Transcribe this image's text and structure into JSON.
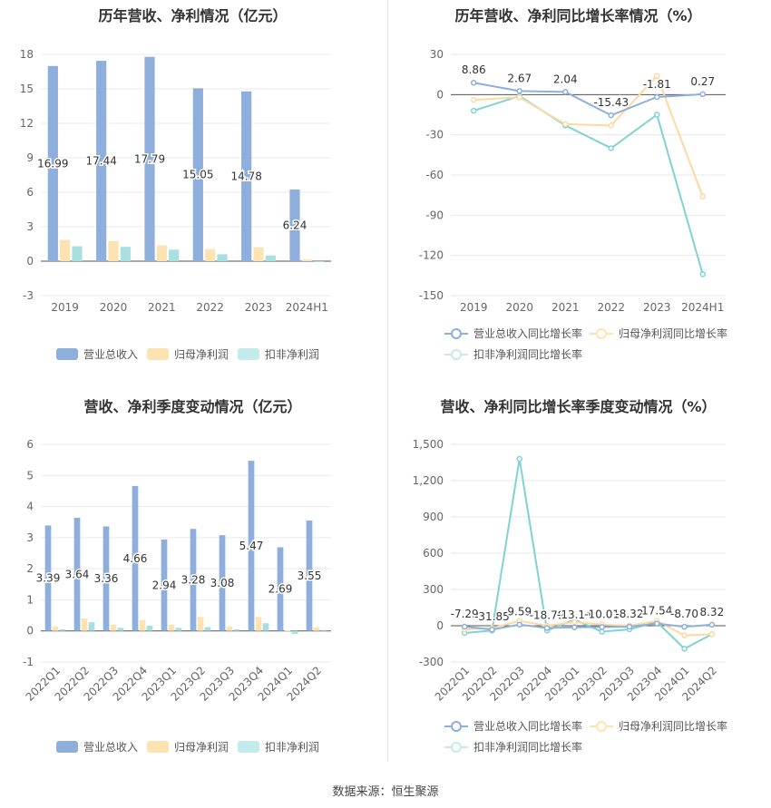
{
  "source": "数据来源：恒生聚源",
  "colors": {
    "revenue": "#8eaedb",
    "netprofit": "#fde3b2",
    "deducted": "#a8e0e0",
    "revenue_line": "#8eaedb",
    "netprofit_line": "#fdd9a0",
    "deducted_line": "#7fd3d3"
  },
  "legend_bar": [
    "营业总收入",
    "归母净利润",
    "扣非净利润"
  ],
  "legend_line": [
    "营业总收入同比增长率",
    "归母净利润同比增长率",
    "扣非净利润同比增长率"
  ],
  "chart_data": [
    {
      "type": "bar",
      "title": "历年营收、净利情况（亿元）",
      "categories": [
        "2019",
        "2020",
        "2021",
        "2022",
        "2023",
        "2024H1"
      ],
      "ylim": [
        -3,
        18
      ],
      "yticks": [
        -3,
        0,
        3,
        6,
        9,
        12,
        15,
        18
      ],
      "series": [
        {
          "name": "营业总收入",
          "values": [
            16.99,
            17.44,
            17.79,
            15.05,
            14.78,
            6.24
          ],
          "labels": [
            "16.99",
            "17.44",
            "17.79",
            "15.05",
            "14.78",
            "6.24"
          ]
        },
        {
          "name": "归母净利润",
          "values": [
            1.85,
            1.75,
            1.38,
            1.05,
            1.2,
            0.15
          ]
        },
        {
          "name": "扣非净利润",
          "values": [
            1.3,
            1.25,
            1.0,
            0.6,
            0.5,
            -0.05
          ]
        }
      ],
      "legend": "bottom"
    },
    {
      "type": "line",
      "title": "历年营收、净利同比增长率情况（%）",
      "categories": [
        "2019",
        "2020",
        "2021",
        "2022",
        "2023",
        "2024H1"
      ],
      "ylim": [
        -150,
        30
      ],
      "yticks": [
        -150,
        -120,
        -90,
        -60,
        -30,
        0,
        30
      ],
      "series": [
        {
          "name": "营业总收入同比增长率",
          "values": [
            8.86,
            2.67,
            2.04,
            -15.43,
            -1.81,
            0.27
          ],
          "labels": [
            "8.86",
            "2.67",
            "2.04",
            "-15.43",
            "-1.81",
            "0.27"
          ]
        },
        {
          "name": "归母净利润同比增长率",
          "values": [
            -4,
            -2,
            -22,
            -23,
            14,
            -76
          ]
        },
        {
          "name": "扣非净利润同比增长率",
          "values": [
            -12,
            -1,
            -23,
            -40,
            -15,
            -134
          ]
        }
      ],
      "legend": "bottom"
    },
    {
      "type": "bar",
      "title": "营收、净利季度变动情况（亿元）",
      "categories": [
        "2022Q1",
        "2022Q2",
        "2022Q3",
        "2022Q4",
        "2023Q1",
        "2023Q2",
        "2023Q3",
        "2023Q4",
        "2024Q1",
        "2024Q2"
      ],
      "ylim": [
        -1,
        6
      ],
      "yticks": [
        -1,
        0,
        1,
        2,
        3,
        4,
        5,
        6
      ],
      "series": [
        {
          "name": "营业总收入",
          "values": [
            3.39,
            3.64,
            3.36,
            4.66,
            2.94,
            3.28,
            3.08,
            5.47,
            2.69,
            3.55
          ],
          "labels": [
            "3.39",
            "3.64",
            "3.36",
            "4.66",
            "2.94",
            "3.28",
            "3.08",
            "5.47",
            "2.69",
            "3.55"
          ]
        },
        {
          "name": "归母净利润",
          "values": [
            0.15,
            0.4,
            0.2,
            0.35,
            0.2,
            0.45,
            0.15,
            0.45,
            0.02,
            0.12
          ]
        },
        {
          "name": "扣非净利润",
          "values": [
            0.05,
            0.28,
            0.1,
            0.17,
            0.1,
            0.12,
            0.05,
            0.25,
            -0.1,
            0.03
          ]
        }
      ],
      "legend": "bottom"
    },
    {
      "type": "line",
      "title": "营收、净利同比增长率季度变动情况（%）",
      "categories": [
        "2022Q1",
        "2022Q2",
        "2022Q3",
        "2022Q4",
        "2023Q1",
        "2023Q2",
        "2023Q3",
        "2023Q4",
        "2024Q1",
        "2024Q2"
      ],
      "ylim": [
        -300,
        1500
      ],
      "yticks": [
        -300,
        0,
        300,
        600,
        900,
        1200,
        1500
      ],
      "ytick_labels": [
        "-300",
        "0",
        "300",
        "600",
        "900",
        "1,200",
        "1,500"
      ],
      "series": [
        {
          "name": "营业总收入同比增长率",
          "values": [
            -7.29,
            -31.85,
            9.59,
            -18.79,
            -13.14,
            -10.01,
            -8.32,
            17.54,
            -8.7,
            8.32
          ],
          "labels": [
            "-7.29",
            "-31.85",
            "9.59",
            "-18.79",
            "-13.14",
            "-10.01",
            "-8.32",
            "17.54",
            "-8.70",
            "8.32"
          ]
        },
        {
          "name": "归母净利润同比增长率",
          "values": [
            -30,
            -20,
            40,
            0,
            30,
            10,
            0,
            40,
            -80,
            -70
          ]
        },
        {
          "name": "扣非净利润同比增长率",
          "values": [
            -60,
            -40,
            1380,
            -40,
            50,
            -50,
            -30,
            30,
            -190,
            -70
          ]
        }
      ],
      "legend": "bottom"
    }
  ]
}
